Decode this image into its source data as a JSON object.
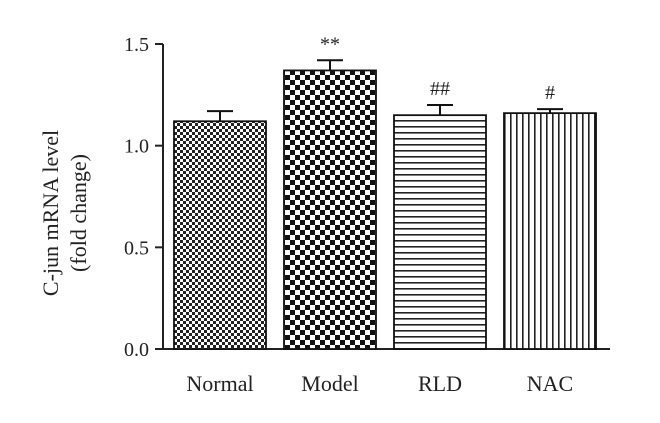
{
  "chart_data": {
    "type": "bar",
    "title": "",
    "ylabel_lines": [
      "C-jun mRNA level",
      "(fold change)"
    ],
    "xlabel": "",
    "ylim": [
      0,
      1.5
    ],
    "yticks": [
      "0.0",
      "0.5",
      "1.0",
      "1.5"
    ],
    "categories": [
      "Normal",
      "Model",
      "RLD",
      "NAC"
    ],
    "values": [
      1.12,
      1.37,
      1.15,
      1.16
    ],
    "errors": [
      0.05,
      0.05,
      0.05,
      0.02
    ],
    "annotations": [
      "",
      "**",
      "##",
      "#"
    ],
    "patterns": [
      "fine-checker",
      "coarse-checker",
      "horizontal-lines",
      "vertical-lines"
    ],
    "grid": false,
    "legend": "none"
  }
}
